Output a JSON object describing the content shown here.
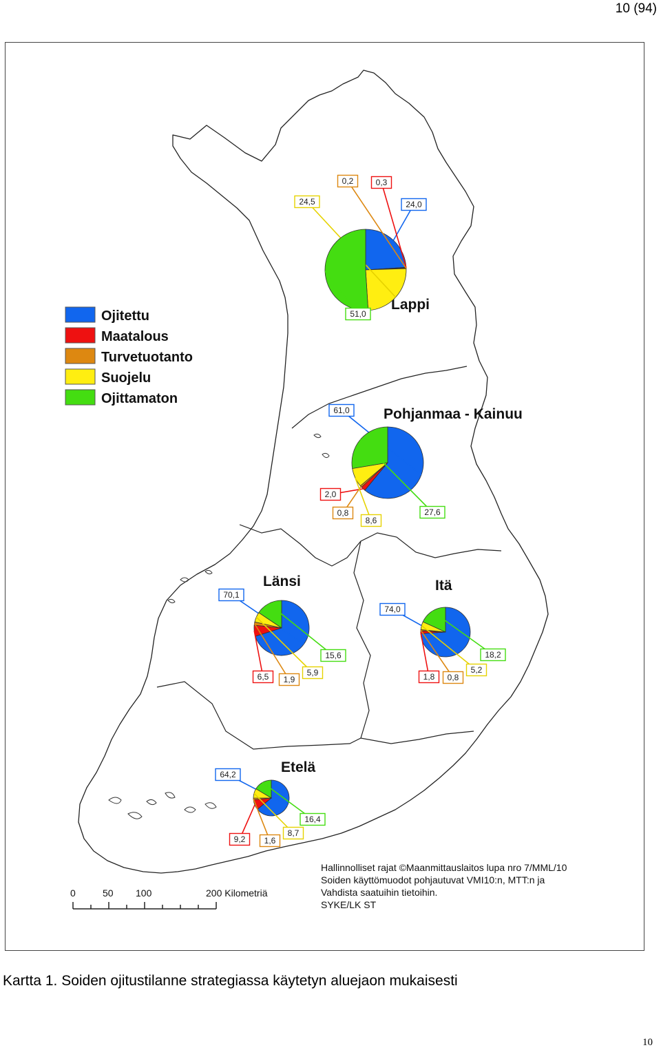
{
  "page_number": "10 (94)",
  "caption": "Kartta 1. Soiden ojitustilanne strategiassa käytetyn aluejaon mukaisesti",
  "footer_page": "10",
  "colors": {
    "Ojitettu": "#1166ee",
    "Maatalous": "#ee1111",
    "Turvetuotanto": "#dd8811",
    "Suojelu": "#ffee11",
    "Ojittamaton": "#44dd11"
  },
  "legend": [
    {
      "label": "Ojitettu",
      "color": "#1166ee"
    },
    {
      "label": "Maatalous",
      "color": "#ee1111"
    },
    {
      "label": "Turvetuotanto",
      "color": "#dd8811"
    },
    {
      "label": "Suojelu",
      "color": "#ffee11"
    },
    {
      "label": "Ojittamaton",
      "color": "#44dd11"
    }
  ],
  "regions": [
    {
      "name": "Lappi",
      "values": {
        "Ojitettu": "24,0",
        "Maatalous": "0,3",
        "Turvetuotanto": "0,2",
        "Suojelu": "24,5",
        "Ojittamaton": "51,0"
      }
    },
    {
      "name": "Pohjanmaa - Kainuu",
      "values": {
        "Ojitettu": "61,0",
        "Maatalous": "2,0",
        "Turvetuotanto": "0,8",
        "Suojelu": "8,6",
        "Ojittamaton": "27,6"
      }
    },
    {
      "name": "Länsi",
      "values": {
        "Ojitettu": "70,1",
        "Maatalous": "6,5",
        "Turvetuotanto": "1,9",
        "Suojelu": "5,9",
        "Ojittamaton": "15,6"
      }
    },
    {
      "name": "Itä",
      "values": {
        "Ojitettu": "74,0",
        "Maatalous": "1,8",
        "Turvetuotanto": "0,8",
        "Suojelu": "5,2",
        "Ojittamaton": "18,2"
      }
    },
    {
      "name": "Etelä",
      "values": {
        "Ojitettu": "64,2",
        "Maatalous": "9,2",
        "Turvetuotanto": "1,6",
        "Suojelu": "8,7",
        "Ojittamaton": "16,4"
      }
    }
  ],
  "credits": [
    "Hallinnolliset rajat ©Maanmittauslaitos lupa nro 7/MML/10",
    "Soiden käyttömuodot pohjautuvat VMI10:n, MTT:n ja",
    "Vahdista saatuihin tietoihin.",
    "SYKE/LK ST"
  ],
  "scale_bar": {
    "ticks": [
      "0",
      "50",
      "100",
      "200 Kilometriä"
    ]
  }
}
